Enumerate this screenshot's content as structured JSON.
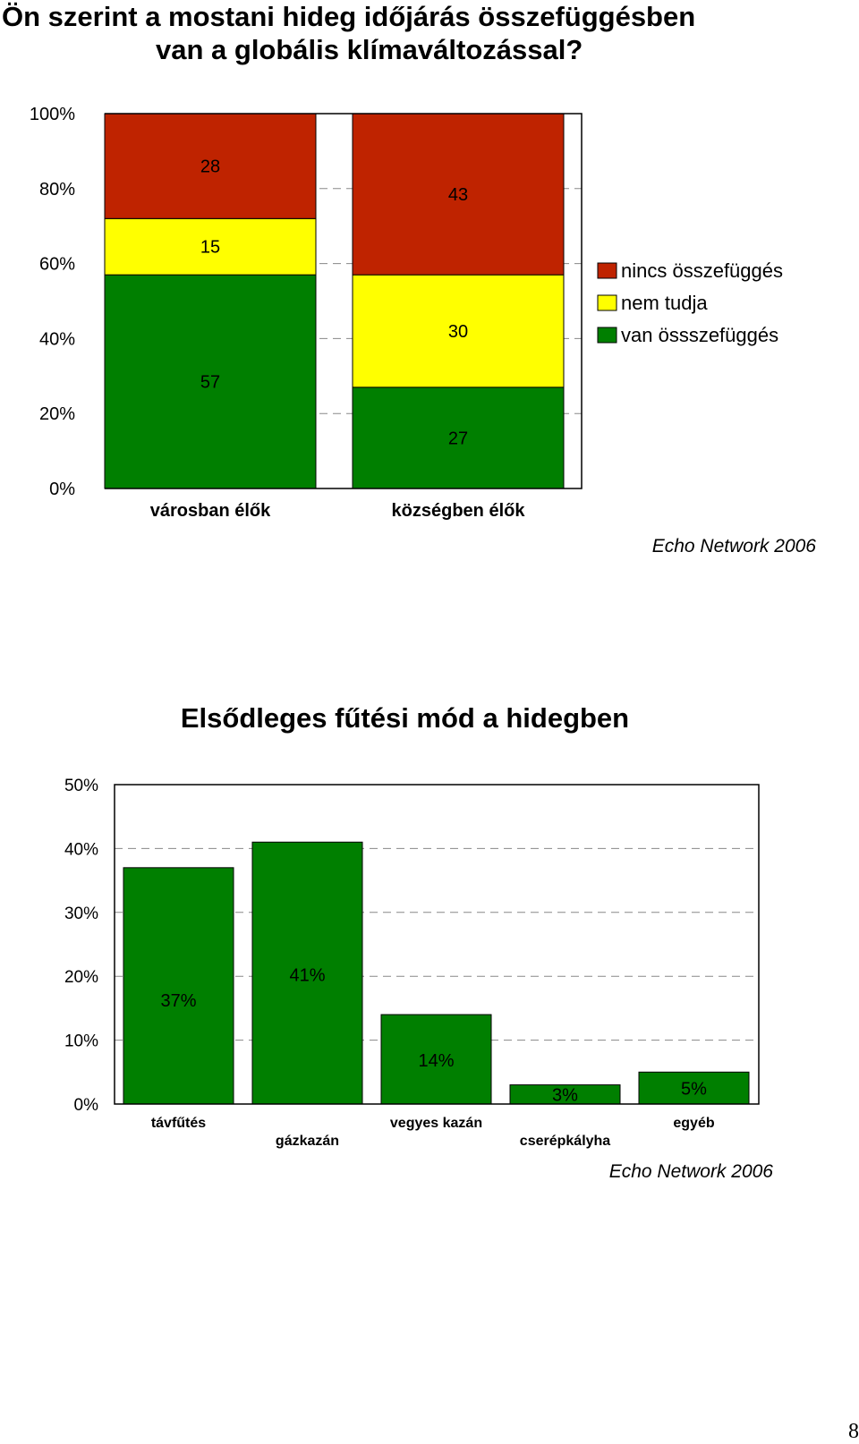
{
  "page_number": "8",
  "chart_data": [
    {
      "type": "bar",
      "stacked": true,
      "percent_stacked": true,
      "title": "Ön szerint a mostani hideg időjárás összefüggésben van a globális klímaváltozással?",
      "title_lines": [
        "Ön szerint a mostani hideg időjárás összefüggésben",
        "van a globális klímaváltozással?"
      ],
      "categories": [
        "városban élők",
        "községben élők"
      ],
      "series": [
        {
          "name": "van össszefüggés",
          "color": "#007f00",
          "values": [
            57,
            27
          ]
        },
        {
          "name": "nem tudja",
          "color": "#ffff00",
          "values": [
            15,
            30
          ]
        },
        {
          "name": "nincs összefüggés",
          "color": "#bf2300",
          "values": [
            28,
            43
          ]
        }
      ],
      "legend_order": [
        "nincs összefüggés",
        "nem tudja",
        "van össszefüggés"
      ],
      "legend_position": "right",
      "ylim": [
        0,
        100
      ],
      "yticks": [
        "0%",
        "20%",
        "40%",
        "60%",
        "80%",
        "100%"
      ],
      "grid": "dashed horizontal",
      "source": "Echo Network 2006"
    },
    {
      "type": "bar",
      "title": "Elsődleges fűtési mód a hidegben",
      "categories": [
        "távfűtés",
        "gázkazán",
        "vegyes kazán",
        "cserépkályha",
        "egyéb"
      ],
      "values": [
        37,
        41,
        14,
        3,
        5
      ],
      "data_labels": [
        "37%",
        "41%",
        "14%",
        "3%",
        "5%"
      ],
      "color": "#007f00",
      "ylim": [
        0,
        50
      ],
      "yticks": [
        "0%",
        "10%",
        "20%",
        "30%",
        "40%",
        "50%"
      ],
      "grid": "dashed horizontal",
      "source": "Echo Network 2006"
    }
  ]
}
